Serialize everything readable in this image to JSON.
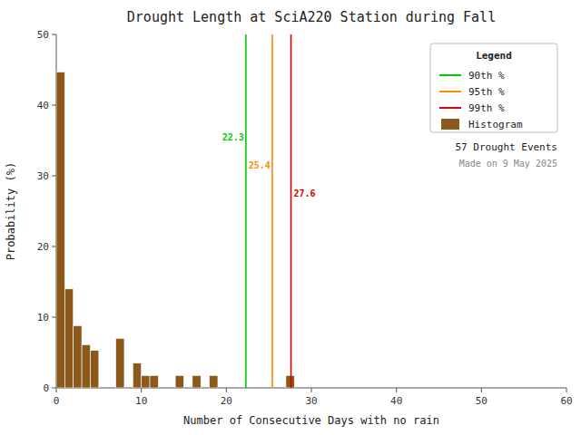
{
  "chart_data": {
    "type": "histogram",
    "title": "Drought Length at SciA220 Station during Fall",
    "x_label": "Number of Consecutive Days with no rain",
    "y_label": "Probability (%)",
    "name": "Histogram",
    "color": "#8B5A1A",
    "bins": [
      0,
      1,
      2,
      3,
      4,
      5,
      6,
      7,
      8,
      9,
      10,
      11,
      12,
      13,
      14,
      15,
      16,
      17,
      18,
      19,
      20,
      21,
      22,
      23,
      24,
      25,
      26,
      27,
      28,
      29,
      30
    ],
    "counts": [
      44.7,
      14.0,
      8.8,
      6.1,
      5.3,
      0.0,
      0.0,
      7.0,
      0.0,
      3.5,
      1.75,
      1.75,
      0.0,
      0.0,
      1.75,
      0.0,
      1.75,
      0.0,
      1.75,
      0.0,
      0.0,
      0.0,
      0.0,
      0.0,
      0.0,
      0.0,
      0.0,
      1.75,
      0.0,
      0.0
    ],
    "reference_lines": [
      {
        "name": "90th %",
        "value": 22.3,
        "color": "#00cc00"
      },
      {
        "name": "95th %",
        "value": 25.4,
        "color": "#ff8800"
      },
      {
        "name": "99th %",
        "value": 27.6,
        "color": "#dd0000"
      }
    ],
    "legend": "upper right",
    "legend_title": "Legend",
    "annotations": [
      "57   Drought Events",
      "Made on 9 May 2025"
    ],
    "xlim": [
      0,
      60
    ],
    "ylim": [
      0,
      50
    ],
    "xticks": [
      0,
      10,
      20,
      30,
      40,
      50,
      60
    ],
    "yticks": [
      0,
      10,
      20,
      30,
      40,
      50
    ],
    "grid": false
  }
}
